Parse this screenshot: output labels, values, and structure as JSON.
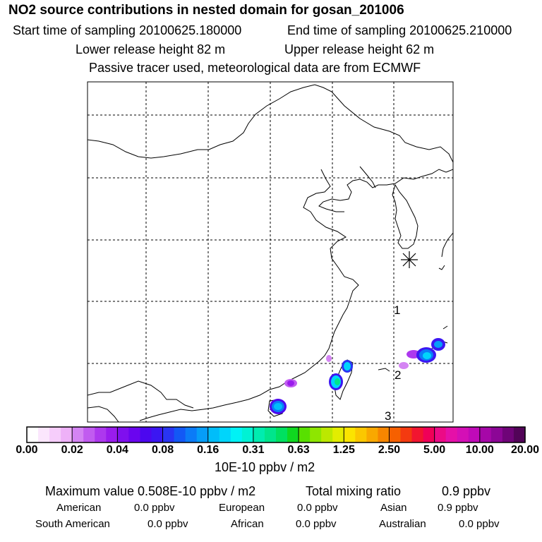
{
  "header": {
    "title": "NO2 source contributions in nested domain for gosan_201006",
    "start": "Start time of sampling 20100625.180000",
    "end": "End time of sampling 20100625.210000",
    "lower": "Lower release height   82 m",
    "upper": "Upper release height   62 m",
    "note": "Passive tracer used, meteorological data are from ECMWF"
  },
  "markers": [
    "1",
    "2",
    "3"
  ],
  "colorbar": {
    "ticks": [
      "0.00",
      "0.02",
      "0.04",
      "0.08",
      "0.16",
      "0.31",
      "0.63",
      "1.25",
      "2.50",
      "5.00",
      "10.00",
      "20.00"
    ],
    "unit": "10E-10 ppbv / m2",
    "colors": [
      "#ffffff",
      "#fbe6fd",
      "#f6cdfb",
      "#eeb1f8",
      "#d484f3",
      "#c15cf0",
      "#ad38ee",
      "#9a1ced",
      "#7f0fee",
      "#6a05ef",
      "#4c07ef",
      "#3b16f2",
      "#2935f3",
      "#1358f5",
      "#0b7bf7",
      "#069df8",
      "#00bdfa",
      "#00d5fb",
      "#00f2f5",
      "#00f2d4",
      "#00ecb0",
      "#00e58c",
      "#00e060",
      "#10d820",
      "#58e000",
      "#8ee600",
      "#bce800",
      "#e3ed00",
      "#fbe400",
      "#fbc700",
      "#f9a800",
      "#f78600",
      "#f66000",
      "#f43a10",
      "#f21530",
      "#f00058",
      "#ec0a86",
      "#e510a8",
      "#d40fb6",
      "#c00ab8",
      "#a607a8",
      "#8c0696",
      "#6f0478",
      "#520458"
    ]
  },
  "stats": {
    "max": "Maximum value  0.508E-10 ppbv / m2",
    "total_label": "Total mixing ratio",
    "total_value": "0.9 ppbv",
    "row1": [
      {
        "label": "American",
        "value": "0.0 ppbv"
      },
      {
        "label": "European",
        "value": "0.0 ppbv"
      },
      {
        "label": "Asian",
        "value": "0.9 ppbv"
      }
    ],
    "row2": [
      {
        "label": "South American",
        "value": "0.0 ppbv"
      },
      {
        "label": "African",
        "value": "0.0 ppbv"
      },
      {
        "label": "Australian",
        "value": "0.0 ppbv"
      }
    ]
  }
}
